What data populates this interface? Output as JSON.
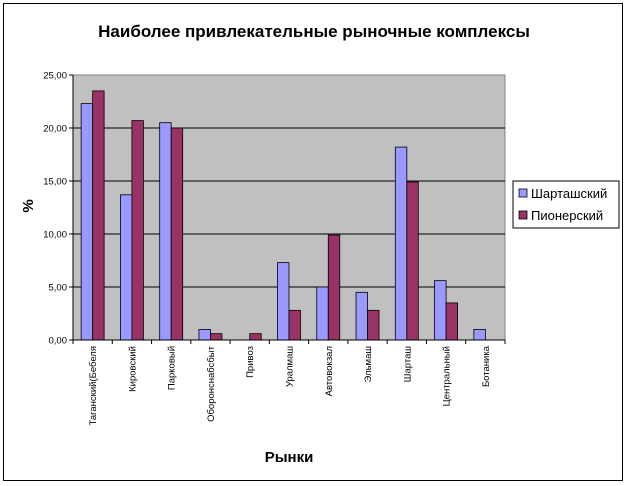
{
  "chart_data": {
    "type": "bar",
    "title": "Наиболее привлекательные рыночные комплексы",
    "xlabel": "Рынки",
    "ylabel": "%",
    "ylim": [
      0,
      25
    ],
    "yticks": [
      "0,00",
      "5,00",
      "10,00",
      "15,00",
      "20,00",
      "25,00"
    ],
    "grid": true,
    "legend_position": "right",
    "categories": [
      "Таганский(Бебеля",
      "Кировский",
      "Парковый",
      "Оборонснабсбыт",
      "Привоз",
      "Уралмаш",
      "Автовокзал",
      "Эльмаш",
      "Шарташ",
      "Центральный",
      "Ботаника"
    ],
    "series": [
      {
        "name": "Шарташский",
        "color": "#9999ff",
        "values": [
          22.3,
          13.7,
          20.5,
          1.0,
          0,
          7.3,
          5.0,
          4.5,
          18.2,
          5.6,
          1.0
        ]
      },
      {
        "name": "Пионерский",
        "color": "#993366",
        "values": [
          23.5,
          20.7,
          20.0,
          0.6,
          0.6,
          2.8,
          9.9,
          2.8,
          14.9,
          3.5,
          0
        ]
      }
    ],
    "plot_bg": "#c0c0c0"
  }
}
